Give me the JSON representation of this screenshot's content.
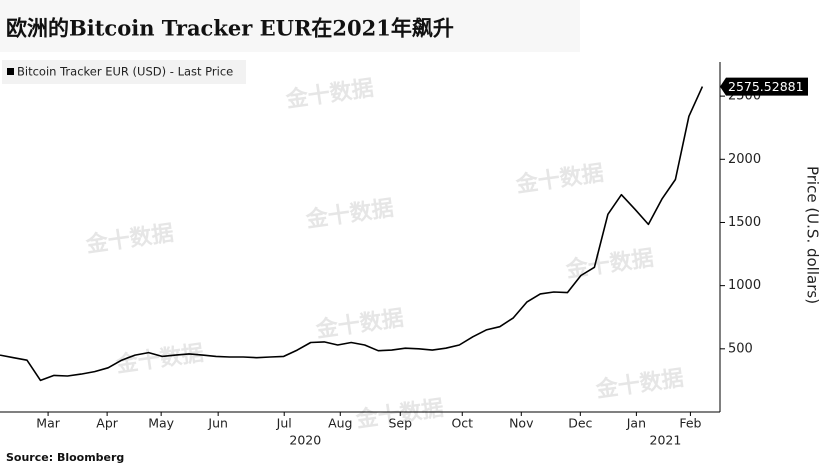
{
  "chart_data": {
    "type": "line",
    "title": "欧洲的Bitcoin Tracker EUR在2021年飙升",
    "y_axis_label": "Price (U.S. dollars)",
    "source": "Source: Bloomberg",
    "watermark": "金十数据",
    "series": [
      {
        "name": "Bitcoin Tracker EUR (USD) - Last Price",
        "color": "#000000",
        "values": [
          450,
          430,
          410,
          250,
          290,
          285,
          300,
          320,
          350,
          410,
          450,
          470,
          440,
          450,
          460,
          450,
          440,
          435,
          435,
          430,
          435,
          440,
          490,
          550,
          555,
          530,
          550,
          530,
          485,
          490,
          505,
          500,
          490,
          505,
          530,
          595,
          650,
          675,
          745,
          870,
          935,
          950,
          945,
          1080,
          1145,
          1565,
          1720,
          1605,
          1485,
          1685,
          1840,
          2340,
          2575.52881
        ]
      }
    ],
    "xlim": [
      0,
      53.3
    ],
    "xticks": [
      {
        "value": 3.56,
        "label": "Mar"
      },
      {
        "value": 7.93,
        "label": "Apr"
      },
      {
        "value": 11.93,
        "label": "May"
      },
      {
        "value": 16.15,
        "label": "Jun"
      },
      {
        "value": 21.04,
        "label": "Jul"
      },
      {
        "value": 25.19,
        "label": "Aug"
      },
      {
        "value": 29.63,
        "label": "Sep"
      },
      {
        "value": 34.22,
        "label": "Oct"
      },
      {
        "value": 38.59,
        "label": "Nov"
      },
      {
        "value": 42.96,
        "label": "Dec"
      },
      {
        "value": 47.11,
        "label": "Jan"
      },
      {
        "value": 51.11,
        "label": "Feb"
      }
    ],
    "x_year_labels": [
      {
        "value": 22.6,
        "label": "2020"
      },
      {
        "value": 49.26,
        "label": "2021"
      }
    ],
    "ylim": [
      0,
      2770
    ],
    "yticks": [
      500,
      1000,
      1500,
      2000,
      2500
    ]
  }
}
